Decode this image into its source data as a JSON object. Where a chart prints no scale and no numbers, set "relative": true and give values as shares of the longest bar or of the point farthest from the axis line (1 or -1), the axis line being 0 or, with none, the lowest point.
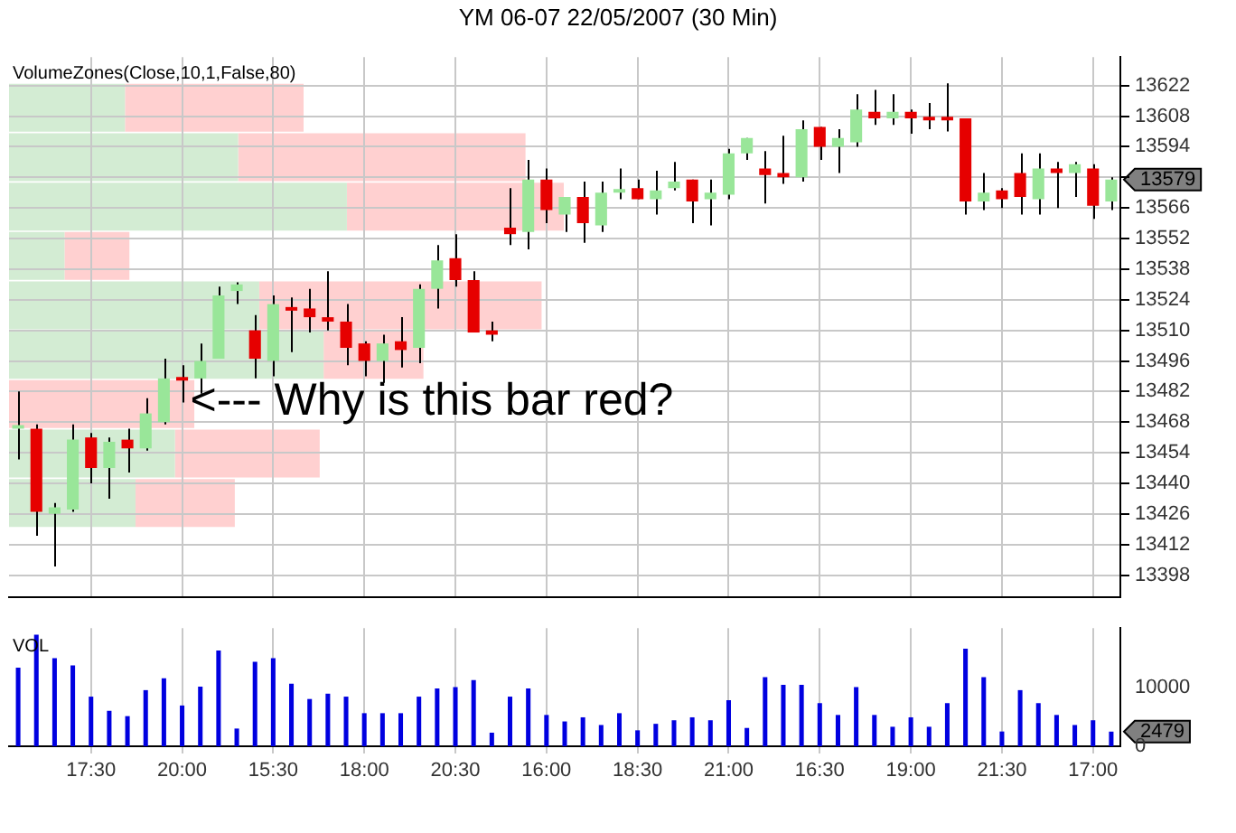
{
  "chart_data": [
    {
      "type": "candlestick",
      "title": "YM 06-07  22/05/2007  (30 Min)",
      "categories": [
        null,
        null,
        null,
        null,
        null,
        null,
        null,
        null,
        null,
        null,
        null,
        null,
        null,
        null,
        null,
        null,
        null,
        null,
        null,
        null,
        null,
        null,
        null,
        null,
        null,
        null,
        null,
        null,
        null,
        null,
        null,
        null,
        null,
        null,
        null,
        null,
        null,
        null,
        null,
        null,
        null,
        null,
        null,
        null,
        null,
        null,
        null,
        null,
        null,
        null,
        null,
        null,
        null,
        null,
        null,
        null,
        null,
        null,
        null,
        null,
        null
      ],
      "ohlc": [
        [
          13465,
          13482,
          13451,
          13466
        ],
        [
          13465,
          13467,
          13416,
          13427
        ],
        [
          13426,
          13431,
          13402,
          13429
        ],
        [
          13428,
          13467,
          13427,
          13460
        ],
        [
          13461,
          13463,
          13440,
          13447
        ],
        [
          13447,
          13461,
          13433,
          13459
        ],
        [
          13460,
          13465,
          13445,
          13456
        ],
        [
          13456,
          13479,
          13455,
          13472
        ],
        [
          13468,
          13497,
          13467,
          13488
        ],
        [
          13488,
          13494,
          13477,
          13487
        ],
        [
          13488,
          13504,
          13481,
          13496
        ],
        [
          13497,
          13530,
          13497,
          13526
        ],
        [
          13528,
          13532,
          13522,
          13531
        ],
        [
          13510,
          13517,
          13488,
          13497
        ],
        [
          13496,
          13526,
          13489,
          13522
        ],
        [
          13520,
          13525,
          13500,
          13519
        ],
        [
          13520,
          13529,
          13509,
          13516
        ],
        [
          13516,
          13537,
          13510,
          13514
        ],
        [
          13514,
          13522,
          13494,
          13502
        ],
        [
          13504,
          13505,
          13489,
          13496
        ],
        [
          13496,
          13508,
          13486,
          13504
        ],
        [
          13505,
          13516,
          13493,
          13501
        ],
        [
          13502,
          13531,
          13495,
          13529
        ],
        [
          13529,
          13549,
          13520,
          13542
        ],
        [
          13543,
          13554,
          13530,
          13533
        ],
        [
          13533,
          13537,
          13509,
          13509
        ],
        [
          13510,
          13514,
          13505,
          13508
        ],
        [
          13557,
          13575,
          13549,
          13554
        ],
        [
          13555,
          13588,
          13547,
          13579
        ],
        [
          13579,
          13584,
          13559,
          13565
        ],
        [
          13563,
          13571,
          13555,
          13571
        ],
        [
          13571,
          13578,
          13550,
          13559
        ],
        [
          13558,
          13578,
          13555,
          13573
        ],
        [
          13573,
          13584,
          13570,
          13574
        ],
        [
          13575,
          13579,
          13570,
          13570
        ],
        [
          13570,
          13583,
          13563,
          13574
        ],
        [
          13575,
          13587,
          13574,
          13578
        ],
        [
          13579,
          13579,
          13559,
          13569
        ],
        [
          13570,
          13579,
          13558,
          13573
        ],
        [
          13572,
          13593,
          13570,
          13591
        ],
        [
          13591,
          13598,
          13588,
          13598
        ],
        [
          13584,
          13592,
          13568,
          13581
        ],
        [
          13582,
          13599,
          13577,
          13580
        ],
        [
          13580,
          13606,
          13578,
          13602
        ],
        [
          13603,
          13603,
          13588,
          13594
        ],
        [
          13594,
          13602,
          13582,
          13598
        ],
        [
          13596,
          13618,
          13594,
          13611
        ],
        [
          13610,
          13620,
          13604,
          13607
        ],
        [
          13607,
          13618,
          13604,
          13610
        ],
        [
          13610,
          13611,
          13600,
          13607
        ],
        [
          13607,
          13614,
          13602,
          13606
        ],
        [
          13607,
          13623,
          13601,
          13606
        ],
        [
          13607,
          13607,
          13563,
          13569
        ],
        [
          13569,
          13582,
          13565,
          13573
        ],
        [
          13574,
          13575,
          13566,
          13570
        ],
        [
          13582,
          13591,
          13563,
          13571
        ],
        [
          13570,
          13591,
          13563,
          13584
        ],
        [
          13584,
          13587,
          13566,
          13582
        ],
        [
          13582,
          13587,
          13571,
          13586
        ],
        [
          13584,
          13586,
          13561,
          13567
        ],
        [
          13569,
          13580,
          13565,
          13579
        ]
      ],
      "colors": [
        "#99e699",
        "#e60000",
        "#99e699",
        "#99e699",
        "#e60000",
        "#99e699",
        "#e60000",
        "#99e699",
        "#99e699",
        "#e60000",
        "#99e699",
        "#99e699",
        "#99e699",
        "#e60000",
        "#99e699",
        "#e60000",
        "#e60000",
        "#e60000",
        "#e60000",
        "#e60000",
        "#99e699",
        "#e60000",
        "#99e699",
        "#99e699",
        "#e60000",
        "#e60000",
        "#e60000",
        "#e60000",
        "#99e699",
        "#e60000",
        "#99e699",
        "#e60000",
        "#99e699",
        "#99e699",
        "#e60000",
        "#99e699",
        "#99e699",
        "#e60000",
        "#99e699",
        "#99e699",
        "#99e699",
        "#e60000",
        "#e60000",
        "#99e699",
        "#e60000",
        "#99e699",
        "#99e699",
        "#e60000",
        "#99e699",
        "#e60000",
        "#e60000",
        "#e60000",
        "#e60000",
        "#99e699",
        "#e60000",
        "#e60000",
        "#99e699",
        "#e60000",
        "#99e699",
        "#e60000",
        "#99e699"
      ],
      "ylim": [
        13388,
        13635
      ],
      "yticks": [
        13398,
        13412,
        13426,
        13440,
        13454,
        13468,
        13482,
        13496,
        13510,
        13524,
        13538,
        13552,
        13566,
        {
          "value": 13580,
          "label": null
        },
        13594,
        13608,
        13622
      ],
      "grid": true,
      "tick_labels": "y",
      "annotations": [
        "VolumeZones(Close,10,1,False,80)",
        "<--- Why is this bar red?",
        "13579"
      ]
    },
    {
      "type": "bar",
      "orientation": "horizontal",
      "stacked": true,
      "relative": true,
      "categories": [
        null,
        null,
        null,
        null,
        null,
        null,
        null,
        null,
        null
      ],
      "series": [
        {
          "color": "#d3ecd3",
          "values": [
            0.209,
            0.413,
            0.609,
            0.1,
            0.451,
            0.567,
            0,
            0.299,
            0.228
          ]
        },
        {
          "color": "#ffd0d0",
          "values": [
            0.322,
            0.518,
            0.391,
            0.117,
            0.509,
            0.18,
            0.334,
            0.261,
            0.179
          ]
        }
      ]
    },
    {
      "type": "bar",
      "title": "VOL",
      "categories": [
        null,
        null,
        null,
        null,
        "17:30",
        null,
        null,
        null,
        null,
        "20:00",
        null,
        null,
        null,
        null,
        "15:30",
        null,
        null,
        null,
        null,
        "18:00",
        null,
        null,
        null,
        null,
        "20:30",
        null,
        null,
        null,
        null,
        "16:00",
        null,
        null,
        null,
        null,
        "18:30",
        null,
        null,
        null,
        null,
        "21:00",
        null,
        null,
        null,
        null,
        "16:30",
        null,
        null,
        null,
        null,
        "19:00",
        null,
        null,
        null,
        null,
        "21:30",
        null,
        null,
        null,
        null,
        "17:00",
        null
      ],
      "values": [
        13300,
        18900,
        14900,
        13700,
        8400,
        6000,
        5100,
        9500,
        11500,
        6900,
        10100,
        16200,
        3000,
        14300,
        14900,
        10600,
        8000,
        8900,
        8400,
        5600,
        5600,
        5600,
        8400,
        9800,
        10000,
        11200,
        2300,
        8400,
        9800,
        5300,
        4200,
        4900,
        3600,
        5600,
        2700,
        3800,
        4400,
        4900,
        4400,
        7800,
        3100,
        11700,
        10400,
        10400,
        7300,
        5300,
        10000,
        5300,
        3300,
        4900,
        3300,
        7300,
        16500,
        11700,
        2500,
        9500,
        7300,
        5300,
        3600,
        4400,
        2479
      ],
      "color": "#0000e0",
      "ylim": [
        0,
        20000
      ],
      "yticks": [
        0,
        10000
      ],
      "grid": "x",
      "annotations": [
        "2479"
      ]
    }
  ]
}
